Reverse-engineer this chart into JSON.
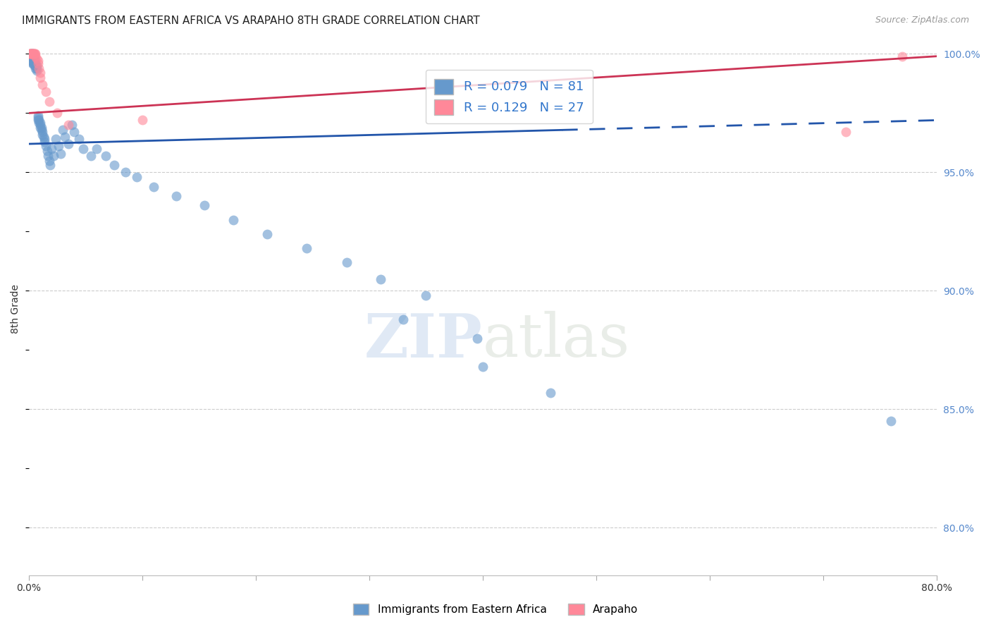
{
  "title": "IMMIGRANTS FROM EASTERN AFRICA VS ARAPAHO 8TH GRADE CORRELATION CHART",
  "source": "Source: ZipAtlas.com",
  "xlabel_blue": "Immigrants from Eastern Africa",
  "xlabel_pink": "Arapaho",
  "ylabel": "8th Grade",
  "xlim": [
    0.0,
    0.8
  ],
  "ylim": [
    0.78,
    1.005
  ],
  "xticks": [
    0.0,
    0.1,
    0.2,
    0.3,
    0.4,
    0.5,
    0.6,
    0.7,
    0.8
  ],
  "xticklabels": [
    "0.0%",
    "",
    "",
    "",
    "",
    "",
    "",
    "",
    "80.0%"
  ],
  "yticks": [
    0.8,
    0.85,
    0.9,
    0.95,
    1.0
  ],
  "yticklabels": [
    "80.0%",
    "85.0%",
    "90.0%",
    "95.0%",
    "100.0%"
  ],
  "R_blue": 0.079,
  "N_blue": 81,
  "R_pink": 0.129,
  "N_pink": 27,
  "blue_color": "#6699CC",
  "pink_color": "#FF8899",
  "trend_blue_color": "#2255AA",
  "trend_pink_color": "#CC3355",
  "blue_trend_x0": 0.0,
  "blue_trend_y0": 0.962,
  "blue_trend_x1": 0.8,
  "blue_trend_y1": 0.972,
  "blue_trend_solid_end": 0.47,
  "pink_trend_x0": 0.0,
  "pink_trend_y0": 0.975,
  "pink_trend_x1": 0.8,
  "pink_trend_y1": 0.999,
  "blue_scatter_x": [
    0.001,
    0.001,
    0.001,
    0.002,
    0.002,
    0.002,
    0.002,
    0.002,
    0.003,
    0.003,
    0.003,
    0.003,
    0.003,
    0.003,
    0.004,
    0.004,
    0.004,
    0.004,
    0.004,
    0.005,
    0.005,
    0.005,
    0.005,
    0.006,
    0.006,
    0.006,
    0.007,
    0.007,
    0.007,
    0.008,
    0.008,
    0.008,
    0.009,
    0.009,
    0.01,
    0.01,
    0.01,
    0.011,
    0.011,
    0.012,
    0.012,
    0.013,
    0.014,
    0.014,
    0.015,
    0.016,
    0.017,
    0.018,
    0.019,
    0.02,
    0.022,
    0.024,
    0.026,
    0.028,
    0.03,
    0.032,
    0.035,
    0.038,
    0.04,
    0.044,
    0.048,
    0.055,
    0.06,
    0.068,
    0.075,
    0.085,
    0.095,
    0.11,
    0.13,
    0.155,
    0.18,
    0.21,
    0.245,
    0.28,
    0.31,
    0.35,
    0.33,
    0.395,
    0.4,
    0.46,
    0.76
  ],
  "blue_scatter_y": [
    0.997,
    0.998,
    0.999,
    0.997,
    0.998,
    0.999,
    1.0,
    1.0,
    0.996,
    0.997,
    0.998,
    0.999,
    0.999,
    1.0,
    0.996,
    0.997,
    0.998,
    0.999,
    1.0,
    0.995,
    0.996,
    0.997,
    0.998,
    0.994,
    0.995,
    0.996,
    0.993,
    0.994,
    0.995,
    0.972,
    0.973,
    0.974,
    0.971,
    0.972,
    0.969,
    0.97,
    0.971,
    0.968,
    0.969,
    0.966,
    0.967,
    0.965,
    0.963,
    0.964,
    0.961,
    0.959,
    0.957,
    0.955,
    0.953,
    0.96,
    0.957,
    0.964,
    0.961,
    0.958,
    0.968,
    0.965,
    0.962,
    0.97,
    0.967,
    0.964,
    0.96,
    0.957,
    0.96,
    0.957,
    0.953,
    0.95,
    0.948,
    0.944,
    0.94,
    0.936,
    0.93,
    0.924,
    0.918,
    0.912,
    0.905,
    0.898,
    0.888,
    0.88,
    0.868,
    0.857,
    0.845
  ],
  "pink_scatter_x": [
    0.001,
    0.001,
    0.002,
    0.002,
    0.002,
    0.003,
    0.003,
    0.004,
    0.004,
    0.005,
    0.005,
    0.006,
    0.006,
    0.007,
    0.008,
    0.008,
    0.009,
    0.01,
    0.01,
    0.012,
    0.015,
    0.018,
    0.025,
    0.035,
    0.1,
    0.72,
    0.77
  ],
  "pink_scatter_y": [
    1.0,
    1.0,
    1.0,
    1.0,
    1.0,
    1.0,
    1.0,
    1.0,
    1.0,
    1.0,
    1.0,
    1.0,
    0.999,
    0.998,
    0.997,
    0.996,
    0.994,
    0.992,
    0.99,
    0.987,
    0.984,
    0.98,
    0.975,
    0.97,
    0.972,
    0.967,
    0.999
  ],
  "watermark_zip": "ZIP",
  "watermark_atlas": "atlas",
  "background_color": "#FFFFFF",
  "grid_color": "#CCCCCC",
  "right_axis_color": "#5588CC",
  "title_fontsize": 11,
  "source_fontsize": 9
}
